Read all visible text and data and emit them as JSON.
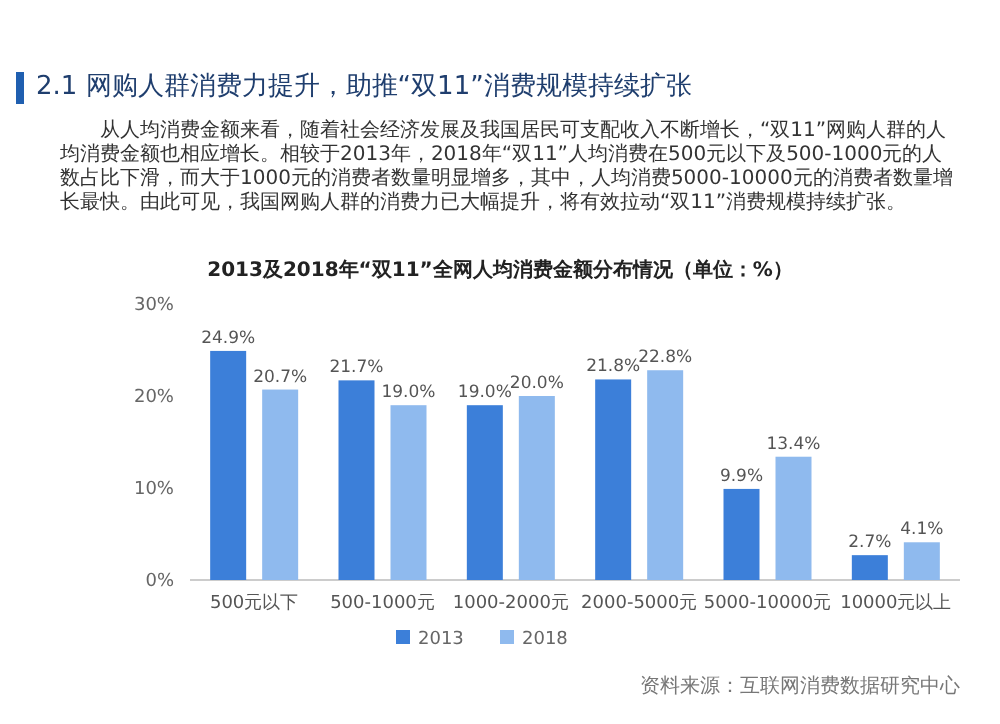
{
  "chart_data": {
    "type": "bar",
    "title": "2013及2018年“双11”全网人均消费金额分布情况（单位：%）",
    "annotations": [
      "2.1 网购人群消费力提升，助推“双11”消费规模持续扩张",
      "从人均消费金额来看，随着社会经济发展及我国居民可支配收入不断增长，“双11”网购人群的人均消费金额也相应增长。相较于2013年，2018年“双11”人均消费在500元以下及500-1000元的人数占比下滑，而大于1000元的消费者数量明显增多，其中，人均消费5000-10000元的消费者数量增长最快。由此可见，我国网购人群的消费力已大幅提升，将有效拉动“双11”消费规模持续扩张。",
      "资料来源：互联网消费数据研究中心"
    ],
    "categories": [
      "500元以下",
      "500-1000元",
      "1000-2000元",
      "2000-5000元",
      "5000-10000元",
      "10000元以上"
    ],
    "series": [
      {
        "name": "2013",
        "color": "#3c7fd9",
        "values": [
          24.9,
          21.7,
          19.0,
          21.8,
          9.9,
          2.7
        ],
        "value_labels": [
          "24.9%",
          "21.7%",
          "19.0%",
          "21.8%",
          "9.9%",
          "2.7%"
        ]
      },
      {
        "name": "2018",
        "color": "#8fbaee",
        "values": [
          20.7,
          19.0,
          20.0,
          22.8,
          13.4,
          4.1
        ],
        "value_labels": [
          "20.7%",
          "19.0%",
          "20.0%",
          "22.8%",
          "13.4%",
          "4.1%"
        ]
      }
    ],
    "ylim": [
      0,
      30
    ],
    "yticks": [
      {
        "value": 0,
        "label": "0%"
      },
      {
        "value": 10,
        "label": "10%"
      },
      {
        "value": 20,
        "label": "20%"
      },
      {
        "value": 30,
        "label": "30%"
      }
    ],
    "legend": "bottom"
  }
}
